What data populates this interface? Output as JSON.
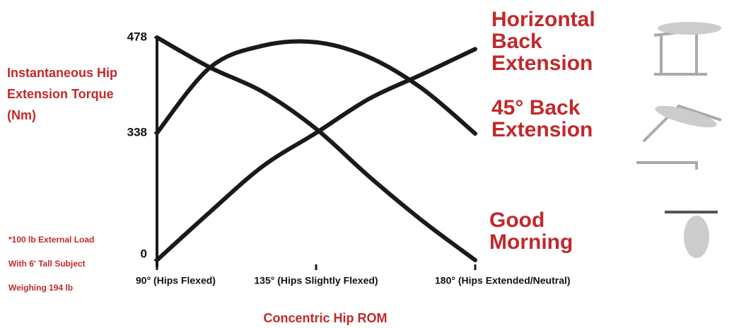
{
  "chart_data": {
    "type": "line",
    "y_label": "Instantaneous Hip Extension Torque (Nm)",
    "x_label": "Concentric Hip ROM",
    "note": "*100 lb External Load With 6' Tall Subject Weighing 194 lb",
    "x": [
      90,
      105,
      120,
      135,
      150,
      165,
      180
    ],
    "xlim": [
      90,
      180
    ],
    "xticks": [
      {
        "value": 90,
        "label": "90° (Hips Flexed)"
      },
      {
        "value": 135,
        "label": "135° (Hips Slightly Flexed)"
      },
      {
        "value": 180,
        "label": "180° (Hips Extended/Neutral)"
      }
    ],
    "ylim": [
      0,
      478
    ],
    "yticks": [
      0,
      338,
      478
    ],
    "series": [
      {
        "name": "Horizontal Back Extension",
        "color": "#1a1a1a",
        "values": [
          0,
          128,
          250,
          338,
          388,
          424,
          461
        ]
      },
      {
        "name": "45° Back Extension",
        "color": "#1a1a1a",
        "values": [
          338,
          434,
          466,
          471,
          449,
          403,
          336
        ]
      },
      {
        "name": "Good Morning",
        "color": "#1a1a1a",
        "values": [
          478,
          434,
          398,
          344,
          222,
          105,
          0
        ]
      }
    ]
  }
}
